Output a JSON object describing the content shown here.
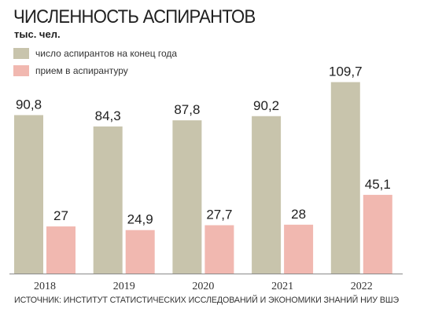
{
  "title": "ЧИСЛЕННОСТЬ АСПИРАНТОВ",
  "subtitle": "тыс. чел.",
  "source": "ИСТОЧНИК: ИНСТИТУТ СТАТИСТИЧЕСКИХ ИССЛЕДОВАНИЙ И ЭКОНОМИКИ ЗНАНИЙ НИУ ВШЭ",
  "chart_data": {
    "type": "bar",
    "title": "ЧИСЛЕННОСТЬ АСПИРАНТОВ",
    "ylabel": "тыс. чел.",
    "categories": [
      "2018",
      "2019",
      "2020",
      "2021",
      "2022"
    ],
    "category_labels": [
      "2018",
      "2019",
      "2020",
      "2021",
      "2022"
    ],
    "series": [
      {
        "name": "число аспирантов на конец года",
        "color": "#c8c4ac",
        "values": [
          90.8,
          84.3,
          87.8,
          90.2,
          109.7
        ],
        "labels": [
          "90,8",
          "84,3",
          "87,8",
          "90,2",
          "109,7"
        ]
      },
      {
        "name": "прием в аспирантуру",
        "color": "#f1b8b0",
        "values": [
          27,
          24.9,
          27.7,
          28,
          45.1
        ],
        "labels": [
          "27",
          "24,9",
          "27,7",
          "28",
          "45,1"
        ]
      }
    ],
    "ylim": [
      0,
      110
    ],
    "grid": false,
    "legend": "top-left"
  }
}
